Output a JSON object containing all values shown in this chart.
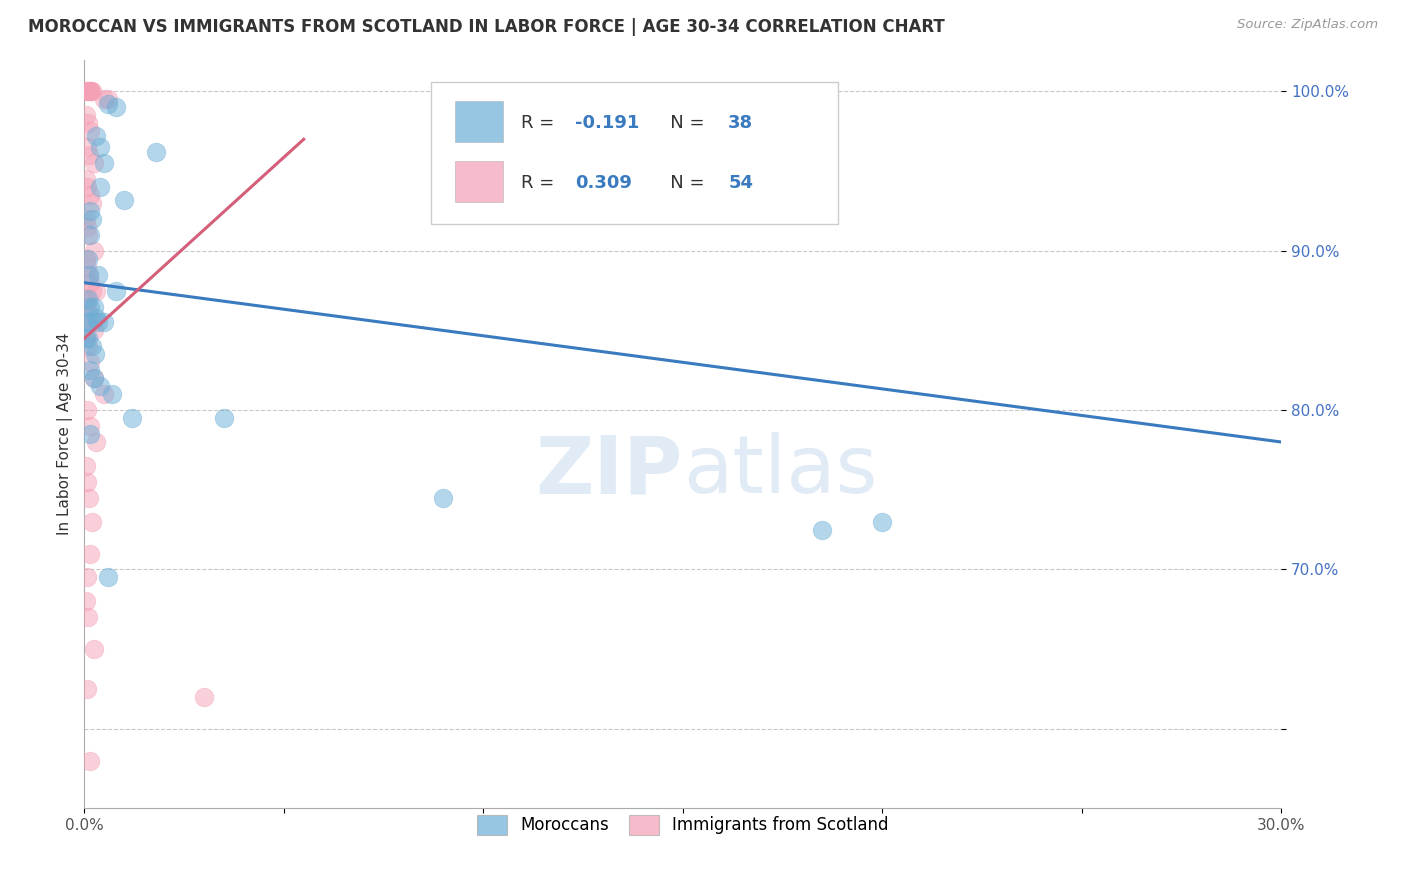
{
  "title": "MOROCCAN VS IMMIGRANTS FROM SCOTLAND IN LABOR FORCE | AGE 30-34 CORRELATION CHART",
  "source": "Source: ZipAtlas.com",
  "ylabel_label": "In Labor Force | Age 30-34",
  "legend_label1": "Moroccans",
  "legend_label2": "Immigrants from Scotland",
  "watermark": "ZIPatlas",
  "r_moroccan": -0.191,
  "n_moroccan": 38,
  "r_scotland": 0.309,
  "n_scotland": 54,
  "blue_color": "#6baed6",
  "pink_color": "#f4a0b5",
  "blue_line_color": "#3a7abf",
  "pink_line_color": "#d45f7a",
  "blue_scatter": [
    [
      0.8,
      99.0
    ],
    [
      0.6,
      99.2
    ],
    [
      0.3,
      97.2
    ],
    [
      0.4,
      96.5
    ],
    [
      0.5,
      95.5
    ],
    [
      1.8,
      96.2
    ],
    [
      0.4,
      94.0
    ],
    [
      1.0,
      93.2
    ],
    [
      0.15,
      92.5
    ],
    [
      0.2,
      92.0
    ],
    [
      0.15,
      91.0
    ],
    [
      0.1,
      89.5
    ],
    [
      0.12,
      88.5
    ],
    [
      0.35,
      88.5
    ],
    [
      0.8,
      87.5
    ],
    [
      0.1,
      87.0
    ],
    [
      0.15,
      86.5
    ],
    [
      0.25,
      86.5
    ],
    [
      0.3,
      85.8
    ],
    [
      0.05,
      85.5
    ],
    [
      0.08,
      85.5
    ],
    [
      0.35,
      85.5
    ],
    [
      0.5,
      85.5
    ],
    [
      0.05,
      84.5
    ],
    [
      0.1,
      84.5
    ],
    [
      0.2,
      84.0
    ],
    [
      0.28,
      83.5
    ],
    [
      0.15,
      82.5
    ],
    [
      0.25,
      82.0
    ],
    [
      0.4,
      81.5
    ],
    [
      0.7,
      81.0
    ],
    [
      1.2,
      79.5
    ],
    [
      0.15,
      78.5
    ],
    [
      3.5,
      79.5
    ],
    [
      9.0,
      74.5
    ],
    [
      18.5,
      72.5
    ],
    [
      0.6,
      69.5
    ],
    [
      20.0,
      73.0
    ]
  ],
  "pink_scatter": [
    [
      0.05,
      100.0
    ],
    [
      0.08,
      100.0
    ],
    [
      0.1,
      100.0
    ],
    [
      0.12,
      100.0
    ],
    [
      0.15,
      100.0
    ],
    [
      0.18,
      100.0
    ],
    [
      0.2,
      100.0
    ],
    [
      0.5,
      99.5
    ],
    [
      0.6,
      99.5
    ],
    [
      0.05,
      98.5
    ],
    [
      0.1,
      98.0
    ],
    [
      0.15,
      97.5
    ],
    [
      0.08,
      96.5
    ],
    [
      0.12,
      96.0
    ],
    [
      0.25,
      95.5
    ],
    [
      0.05,
      94.5
    ],
    [
      0.08,
      94.0
    ],
    [
      0.15,
      93.5
    ],
    [
      0.2,
      93.0
    ],
    [
      0.05,
      92.0
    ],
    [
      0.08,
      91.5
    ],
    [
      0.1,
      91.0
    ],
    [
      0.25,
      90.0
    ],
    [
      0.05,
      89.5
    ],
    [
      0.08,
      89.0
    ],
    [
      0.12,
      88.5
    ],
    [
      0.15,
      88.0
    ],
    [
      0.2,
      87.5
    ],
    [
      0.3,
      87.5
    ],
    [
      0.05,
      87.0
    ],
    [
      0.08,
      86.5
    ],
    [
      0.12,
      86.0
    ],
    [
      0.2,
      85.5
    ],
    [
      0.25,
      85.0
    ],
    [
      0.05,
      84.5
    ],
    [
      0.1,
      84.0
    ],
    [
      0.15,
      83.0
    ],
    [
      0.25,
      82.0
    ],
    [
      0.5,
      81.0
    ],
    [
      0.08,
      80.0
    ],
    [
      0.15,
      79.0
    ],
    [
      0.3,
      78.0
    ],
    [
      0.05,
      76.5
    ],
    [
      0.08,
      75.5
    ],
    [
      0.12,
      74.5
    ],
    [
      0.2,
      73.0
    ],
    [
      0.15,
      71.0
    ],
    [
      0.08,
      69.5
    ],
    [
      0.05,
      68.0
    ],
    [
      0.1,
      67.0
    ],
    [
      0.25,
      65.0
    ],
    [
      0.08,
      62.5
    ],
    [
      0.15,
      58.0
    ],
    [
      3.0,
      62.0
    ]
  ],
  "xmin": 0.0,
  "xmax": 30.0,
  "ymin": 55.0,
  "ymax": 102.0,
  "yticks": [
    60.0,
    70.0,
    80.0,
    90.0,
    100.0
  ],
  "ytick_labels": [
    "",
    "70.0%",
    "80.0%",
    "90.0%",
    "100.0%"
  ],
  "blue_trendline": [
    [
      0.0,
      88.0
    ],
    [
      30.0,
      78.0
    ]
  ],
  "pink_trendline": [
    [
      0.0,
      84.5
    ],
    [
      5.5,
      97.0
    ]
  ]
}
